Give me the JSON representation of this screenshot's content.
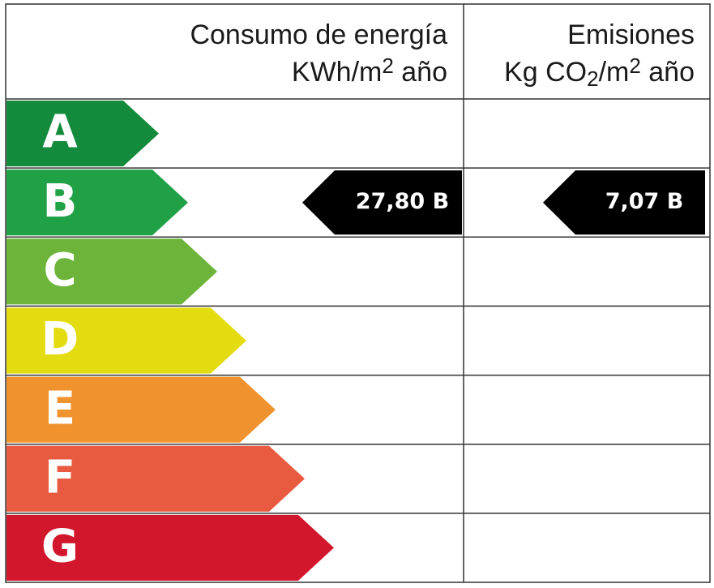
{
  "header": {
    "energy": {
      "title": "Consumo de energía",
      "unit": [
        "KWh/m",
        "2",
        " año"
      ]
    },
    "emissions": {
      "title": "Emisiones",
      "unit": [
        "Kg CO",
        "2",
        "/m",
        "2",
        " año"
      ]
    }
  },
  "classes": [
    {
      "letter": "A",
      "color": "#138a3c"
    },
    {
      "letter": "B",
      "color": "#21a146",
      "energy": "27,80 B",
      "emissions": "7,07 B"
    },
    {
      "letter": "C",
      "color": "#6cb53a"
    },
    {
      "letter": "D",
      "color": "#e3dc10"
    },
    {
      "letter": "E",
      "color": "#f0932f"
    },
    {
      "letter": "F",
      "color": "#e95b40"
    },
    {
      "letter": "G",
      "color": "#d2162b"
    }
  ]
}
